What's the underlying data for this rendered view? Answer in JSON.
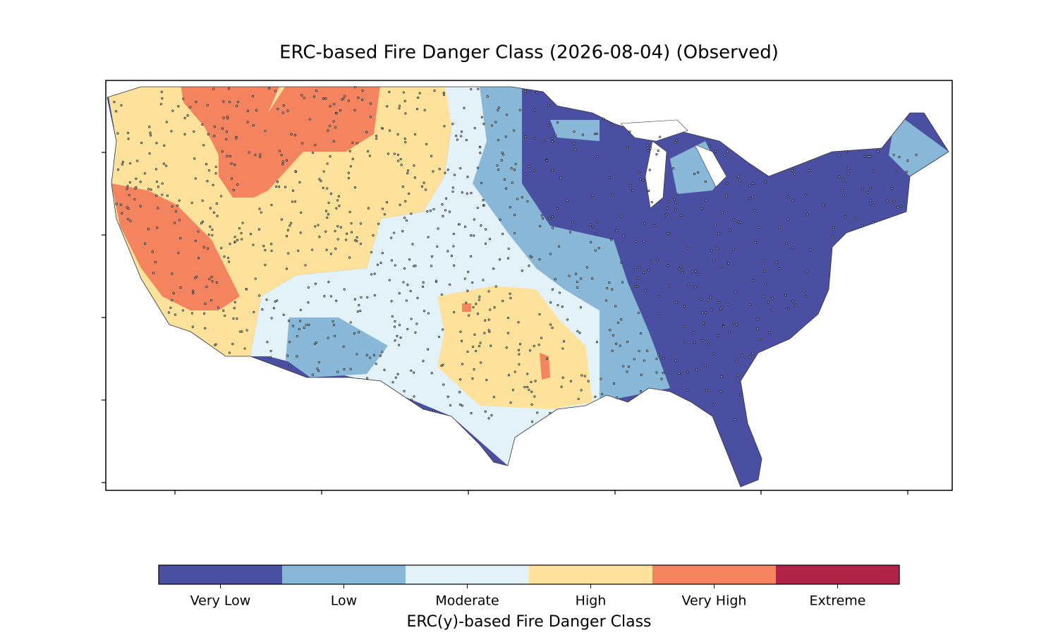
{
  "map": {
    "title": "ERC-based Fire Danger Class (2026-08-04) (Observed)",
    "colorbar": {
      "label": "ERC(y)-based Fire Danger Class",
      "classes": [
        {
          "name": "Very Low",
          "color": "#4b4fa2"
        },
        {
          "name": "Low",
          "color": "#88b7d7"
        },
        {
          "name": "Moderate",
          "color": "#e2f2f8"
        },
        {
          "name": "High",
          "color": "#fee19b"
        },
        {
          "name": "Very High",
          "color": "#f4845f"
        },
        {
          "name": "Extreme",
          "color": "#b0244a"
        }
      ]
    }
  }
}
